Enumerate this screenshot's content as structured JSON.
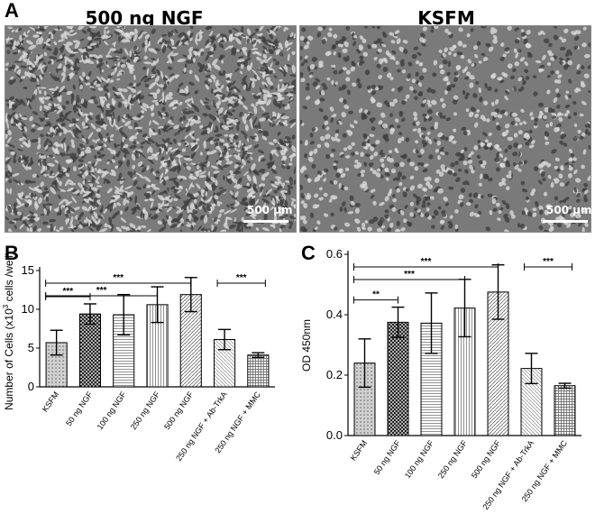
{
  "panel_a": {
    "letter": "A",
    "left_title": "500 ng NGF",
    "right_title": "KSFM",
    "left_scale": "500 µm",
    "right_scale": "500 µm"
  },
  "colors": {
    "micro_bg": "#7a7a7a",
    "cell": "#d9d9d9",
    "cell_dark": "#3f3f3f",
    "bar_stroke": "#000000"
  },
  "chart_data": [
    {
      "panel": "B",
      "type": "bar",
      "categories": [
        "KSFM",
        "50 ng NGF",
        "100 ng NGF",
        "250 ng NGF",
        "500 ng NGF",
        "250 ng NGF + Ab-TrkA",
        "250 ng NGF + MMC"
      ],
      "values": [
        5.7,
        9.4,
        9.3,
        10.6,
        11.9,
        6.1,
        4.1
      ],
      "errors": [
        1.6,
        1.3,
        2.6,
        2.3,
        2.2,
        1.3,
        0.3
      ],
      "ylabel_main": "Number of Cells (x10",
      "ylabel_sup": "3",
      "ylabel_end": " cells /well)",
      "ylim": [
        0,
        15
      ],
      "yticks": [
        "0",
        "5",
        "10",
        "15"
      ],
      "significance": [
        {
          "from": 0,
          "to": 1,
          "label": "***"
        },
        {
          "from": 0,
          "to": 3,
          "label": "***"
        },
        {
          "from": 0,
          "to": 4,
          "label": "***"
        },
        {
          "from": 5,
          "to": 6,
          "label": "***"
        }
      ]
    },
    {
      "panel": "C",
      "type": "bar",
      "categories": [
        "KSFM",
        "50 ng NGF",
        "100 ng NGF",
        "250 ng NGF",
        "500 ng NGF",
        "250 ng NGF + Ab-TrkA",
        "250 ng NGF + MMC"
      ],
      "values": [
        0.24,
        0.375,
        0.372,
        0.422,
        0.475,
        0.222,
        0.165
      ],
      "errors": [
        0.08,
        0.05,
        0.1,
        0.095,
        0.09,
        0.05,
        0.008
      ],
      "ylabel": "OD 450nm",
      "ylim": [
        0,
        0.6
      ],
      "yticks": [
        "0.0",
        "0.2",
        "0.4",
        "0.6"
      ],
      "significance": [
        {
          "from": 0,
          "to": 1,
          "label": "**"
        },
        {
          "from": 0,
          "to": 3,
          "label": "***"
        },
        {
          "from": 0,
          "to": 4,
          "label": "***"
        },
        {
          "from": 5,
          "to": 6,
          "label": "***"
        }
      ]
    }
  ]
}
